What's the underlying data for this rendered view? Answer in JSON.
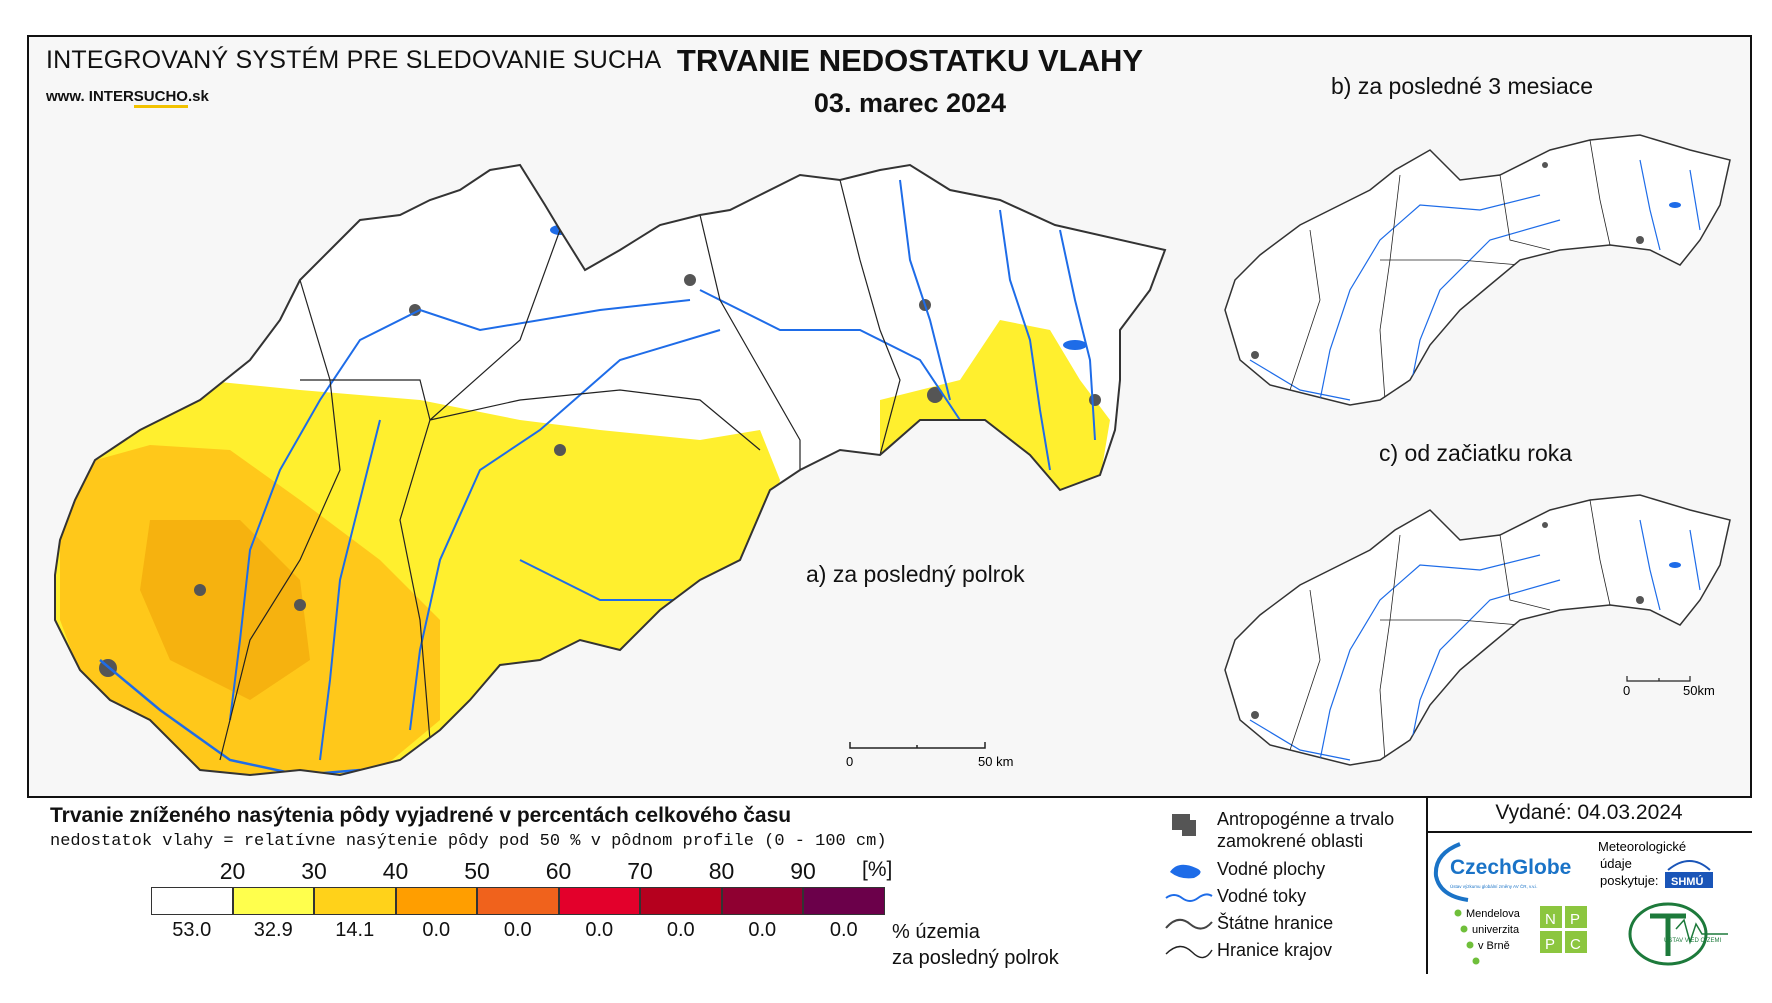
{
  "header": {
    "system_title": "INTEGROVANÝ SYSTÉM PRE SLEDOVANIE SUCHA",
    "web_prefix": "www.",
    "web_brand_a": "INTER",
    "web_brand_b": "SUCHO",
    "web_suffix": ".sk",
    "main_title": "TRVANIE NEDOSTATKU VLAHY",
    "date": "03. marec 2024"
  },
  "panels": {
    "a_label": "a) za posledný polrok",
    "b_label": "b) za posledné 3 mesiace",
    "c_label": "c) od začiatku roka"
  },
  "scale_bars": {
    "main": {
      "start": "0",
      "end": "50 km"
    },
    "small": {
      "start": "0",
      "end": "50km"
    }
  },
  "legend": {
    "title": "Trvanie zníženého nasýtenia pôdy vyjadrené v percentách celkového času",
    "subtitle": "nedostatok vlahy = relatívne nasýtenie pôdy pod 50 % v pôdnom profile (0 - 100 cm)",
    "ticks": [
      "20",
      "30",
      "40",
      "50",
      "60",
      "70",
      "80",
      "90"
    ],
    "unit": "[%]",
    "colors": [
      "#ffffff",
      "#ffff4d",
      "#ffd21a",
      "#ff9e00",
      "#f0621c",
      "#e3002b",
      "#b5001e",
      "#8f0031",
      "#6b004a"
    ],
    "percentages": [
      "53.0",
      "32.9",
      "14.1",
      "0.0",
      "0.0",
      "0.0",
      "0.0",
      "0.0",
      "0.0"
    ],
    "pct_caption_1": "% územia",
    "pct_caption_2": "za posledný polrok"
  },
  "map_key": {
    "urban": "Antropogénne a trvalo",
    "urban_2": "zamokrené oblasti",
    "water_bodies": "Vodné plochy",
    "rivers": "Vodné toky",
    "state_border": "Štátne hranice",
    "region_border": "Hranice krajov"
  },
  "issued": {
    "text": "Vydané: 04.03.2024"
  },
  "logos": {
    "czechglobe": "CzechGlobe",
    "czechglobe_sub": "Ústav výzkumu globální změny AV ČR, v.v.i.",
    "meteo_1": "Meteorologické",
    "meteo_2": "údaje",
    "meteo_3": "poskytuje:",
    "shmu": "SHMÚ",
    "mendel_1": "Mendelova",
    "mendel_2": "univerzita",
    "mendel_3": "v Brně",
    "nppc": [
      "N",
      "P",
      "P",
      "C"
    ],
    "uvz": "ÚSTAV VIED O ZEMI"
  }
}
